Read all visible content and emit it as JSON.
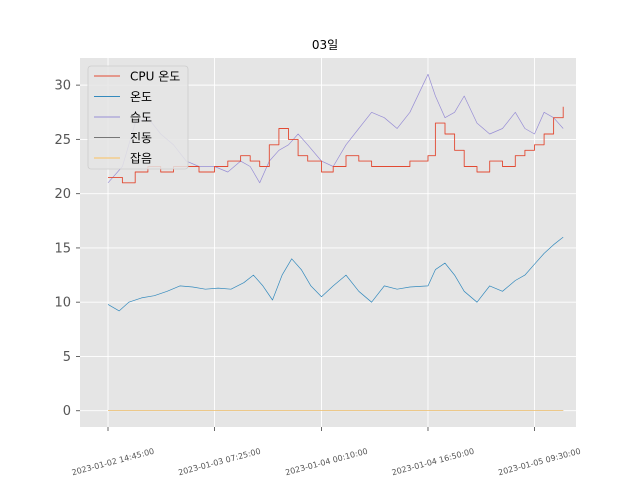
{
  "chart_data": {
    "type": "line",
    "title": "03일",
    "xlabel": "",
    "ylabel": "",
    "ylim": [
      -1.5,
      32.5
    ],
    "xlim": [
      "2023-01-02 10:22:00",
      "2023-01-05 16:00:00"
    ],
    "grid": true,
    "legend_position": "top-left",
    "y_ticks": [
      "0",
      "5",
      "10",
      "15",
      "20",
      "25",
      "30"
    ],
    "x_ticks": [
      "2023-01-02 14:45:00",
      "2023-01-03 07:25:00",
      "2023-01-04 00:10:00",
      "2023-01-04 16:50:00",
      "2023-01-05 09:30:00"
    ],
    "colors": {
      "background": "#e5e5e5",
      "grid": "#ffffff",
      "cpu_temp": "#e24a33",
      "temperature": "#348abd",
      "humidity": "#988ed5",
      "vibration": "#777777",
      "noise": "#fbc15e"
    },
    "series": [
      {
        "name": "CPU 온도",
        "key": "cpu_temp",
        "x": [
          "2023-01-02 14:45:00",
          "2023-01-02 17:00:00",
          "2023-01-02 19:00:00",
          "2023-01-02 21:00:00",
          "2023-01-02 23:00:00",
          "2023-01-03 01:00:00",
          "2023-01-03 03:00:00",
          "2023-01-03 05:00:00",
          "2023-01-03 07:25:00",
          "2023-01-03 09:30:00",
          "2023-01-03 11:30:00",
          "2023-01-03 13:00:00",
          "2023-01-03 14:30:00",
          "2023-01-03 16:00:00",
          "2023-01-03 17:30:00",
          "2023-01-03 19:00:00",
          "2023-01-03 20:30:00",
          "2023-01-03 22:00:00",
          "2023-01-04 00:10:00",
          "2023-01-04 02:00:00",
          "2023-01-04 04:00:00",
          "2023-01-04 06:00:00",
          "2023-01-04 08:00:00",
          "2023-01-04 10:00:00",
          "2023-01-04 12:00:00",
          "2023-01-04 14:00:00",
          "2023-01-04 16:50:00",
          "2023-01-04 18:00:00",
          "2023-01-04 19:30:00",
          "2023-01-04 21:00:00",
          "2023-01-04 22:30:00",
          "2023-01-05 00:30:00",
          "2023-01-05 02:30:00",
          "2023-01-05 04:30:00",
          "2023-01-05 06:30:00",
          "2023-01-05 08:00:00",
          "2023-01-05 09:30:00",
          "2023-01-05 11:00:00",
          "2023-01-05 12:30:00",
          "2023-01-05 14:00:00"
        ],
        "values": [
          21.5,
          21.0,
          22.0,
          22.5,
          22.0,
          22.5,
          22.5,
          22.0,
          22.5,
          23.0,
          23.5,
          23.0,
          22.5,
          24.5,
          26.0,
          25.0,
          23.5,
          23.0,
          22.0,
          22.5,
          23.5,
          23.0,
          22.5,
          22.5,
          22.5,
          23.0,
          23.5,
          26.5,
          25.5,
          24.0,
          22.5,
          22.0,
          23.0,
          22.5,
          23.5,
          24.0,
          24.5,
          25.5,
          27.0,
          28.0
        ]
      },
      {
        "name": "온도",
        "key": "temperature",
        "x": [
          "2023-01-02 14:45:00",
          "2023-01-02 16:30:00",
          "2023-01-02 18:00:00",
          "2023-01-02 20:00:00",
          "2023-01-02 22:00:00",
          "2023-01-03 00:00:00",
          "2023-01-03 02:00:00",
          "2023-01-03 04:00:00",
          "2023-01-03 06:00:00",
          "2023-01-03 08:00:00",
          "2023-01-03 10:00:00",
          "2023-01-03 12:00:00",
          "2023-01-03 13:30:00",
          "2023-01-03 15:00:00",
          "2023-01-03 16:30:00",
          "2023-01-03 18:00:00",
          "2023-01-03 19:30:00",
          "2023-01-03 21:00:00",
          "2023-01-03 22:30:00",
          "2023-01-04 00:10:00",
          "2023-01-04 02:00:00",
          "2023-01-04 04:00:00",
          "2023-01-04 06:00:00",
          "2023-01-04 08:00:00",
          "2023-01-04 10:00:00",
          "2023-01-04 12:00:00",
          "2023-01-04 14:00:00",
          "2023-01-04 16:50:00",
          "2023-01-04 18:00:00",
          "2023-01-04 19:30:00",
          "2023-01-04 21:00:00",
          "2023-01-04 22:30:00",
          "2023-01-05 00:30:00",
          "2023-01-05 02:30:00",
          "2023-01-05 04:30:00",
          "2023-01-05 06:30:00",
          "2023-01-05 08:00:00",
          "2023-01-05 09:30:00",
          "2023-01-05 11:00:00",
          "2023-01-05 12:30:00",
          "2023-01-05 14:00:00"
        ],
        "values": [
          9.8,
          9.2,
          10.0,
          10.4,
          10.6,
          11.0,
          11.5,
          11.4,
          11.2,
          11.3,
          11.2,
          11.8,
          12.5,
          11.5,
          10.2,
          12.5,
          14.0,
          13.0,
          11.5,
          10.5,
          11.5,
          12.5,
          11.0,
          10.0,
          11.5,
          11.2,
          11.4,
          11.5,
          13.0,
          13.6,
          12.5,
          11.0,
          10.0,
          11.5,
          11.0,
          12.0,
          12.5,
          13.5,
          14.5,
          15.3,
          16.0
        ]
      },
      {
        "name": "습도",
        "key": "humidity",
        "x": [
          "2023-01-02 14:45:00",
          "2023-01-02 17:00:00",
          "2023-01-02 19:00:00",
          "2023-01-02 21:00:00",
          "2023-01-02 23:00:00",
          "2023-01-03 01:00:00",
          "2023-01-03 03:00:00",
          "2023-01-03 05:00:00",
          "2023-01-03 07:25:00",
          "2023-01-03 09:30:00",
          "2023-01-03 11:30:00",
          "2023-01-03 13:00:00",
          "2023-01-03 14:30:00",
          "2023-01-03 16:00:00",
          "2023-01-03 17:30:00",
          "2023-01-03 19:00:00",
          "2023-01-03 20:30:00",
          "2023-01-03 22:00:00",
          "2023-01-04 00:10:00",
          "2023-01-04 02:00:00",
          "2023-01-04 04:00:00",
          "2023-01-04 06:00:00",
          "2023-01-04 08:00:00",
          "2023-01-04 10:00:00",
          "2023-01-04 12:00:00",
          "2023-01-04 14:00:00",
          "2023-01-04 16:50:00",
          "2023-01-04 18:00:00",
          "2023-01-04 19:30:00",
          "2023-01-04 21:00:00",
          "2023-01-04 22:30:00",
          "2023-01-05 00:30:00",
          "2023-01-05 02:30:00",
          "2023-01-05 04:30:00",
          "2023-01-05 06:30:00",
          "2023-01-05 08:00:00",
          "2023-01-05 09:30:00",
          "2023-01-05 11:00:00",
          "2023-01-05 12:30:00",
          "2023-01-05 14:00:00"
        ],
        "values": [
          21.0,
          22.5,
          26.5,
          27.0,
          25.5,
          24.5,
          23.0,
          22.5,
          22.5,
          22.0,
          23.0,
          22.5,
          21.0,
          23.0,
          24.0,
          24.5,
          25.5,
          24.5,
          23.0,
          22.5,
          24.5,
          26.0,
          27.5,
          27.0,
          26.0,
          27.5,
          31.0,
          29.0,
          27.0,
          27.5,
          29.0,
          26.5,
          25.5,
          26.0,
          27.5,
          26.0,
          25.5,
          27.5,
          27.0,
          26.0
        ]
      },
      {
        "name": "진동",
        "key": "vibration",
        "x": [
          "2023-01-02 14:45:00",
          "2023-01-05 14:00:00"
        ],
        "values": [
          0,
          0
        ]
      },
      {
        "name": "잡음",
        "key": "noise",
        "x": [
          "2023-01-02 14:45:00",
          "2023-01-05 14:00:00"
        ],
        "values": [
          0,
          0
        ]
      }
    ]
  }
}
